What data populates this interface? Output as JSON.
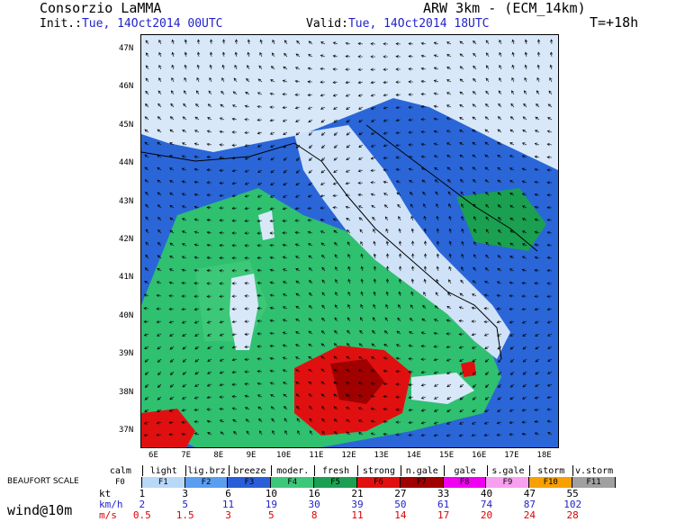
{
  "header": {
    "org": "Consorzio LaMMA",
    "model": "ARW 3km - (ECM_14km)",
    "init_label": "Init.:",
    "init_value": "Tue, 14Oct2014 00UTC",
    "valid_label": "Valid:",
    "valid_value": "Tue, 14Oct2014 18UTC",
    "forecast_step": "T=+18h"
  },
  "map": {
    "lat_labels": [
      "47N",
      "46N",
      "45N",
      "44N",
      "43N",
      "42N",
      "41N",
      "40N",
      "39N",
      "38N",
      "37N"
    ],
    "lon_labels": [
      "6E",
      "7E",
      "8E",
      "9E",
      "10E",
      "11E",
      "12E",
      "13E",
      "14E",
      "15E",
      "16E",
      "17E",
      "18E"
    ],
    "lat_range": [
      36.6,
      47.4
    ],
    "lon_range": [
      5.6,
      18.4
    ]
  },
  "legend": {
    "beaufort_label": "BEAUFORT SCALE",
    "wind_label": "wind@10m",
    "categories": [
      "calm",
      "light",
      "lig.brz",
      "breeze",
      "moder.",
      "fresh",
      "strong",
      "n.gale",
      "gale",
      "s.gale",
      "storm",
      "v.storm"
    ],
    "forces": [
      "F0",
      "F1",
      "F2",
      "F3",
      "F4",
      "F5",
      "F6",
      "F7",
      "F8",
      "F9",
      "F10",
      "F11"
    ],
    "colors": [
      "#ffffff",
      "#b8d8f8",
      "#5a9ef0",
      "#2a5ed8",
      "#3cc878",
      "#1aa050",
      "#e01010",
      "#a00000",
      "#f000f0",
      "#f8a0f0",
      "#f8a000",
      "#a0a0a0"
    ],
    "units": [
      "kt",
      "km/h",
      "m/s"
    ],
    "kt": [
      "1",
      "3",
      "6",
      "10",
      "16",
      "21",
      "27",
      "33",
      "40",
      "47",
      "55"
    ],
    "kmh": [
      "2",
      "5",
      "11",
      "19",
      "30",
      "39",
      "50",
      "61",
      "74",
      "87",
      "102"
    ],
    "ms": [
      "0.5",
      "1.5",
      "3",
      "5",
      "8",
      "11",
      "14",
      "17",
      "20",
      "24",
      "28"
    ]
  }
}
